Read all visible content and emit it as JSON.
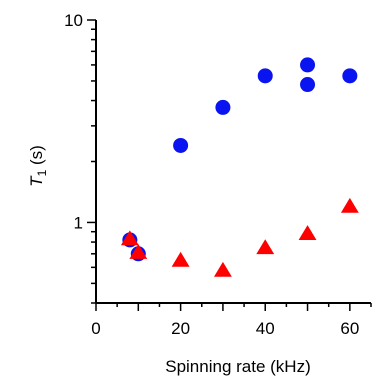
{
  "chart_data": {
    "type": "scatter",
    "xlabel": "Spinning rate (kHz)",
    "ylabel": {
      "main": "T",
      "sub": "1",
      "unit": " (s)"
    },
    "xlim": [
      0,
      65
    ],
    "ylim": [
      0.4,
      10
    ],
    "y_scale": "log",
    "x_ticks": [
      0,
      20,
      40,
      60
    ],
    "y_ticks": [
      1,
      10
    ],
    "grid": false,
    "series": [
      {
        "marker": "circle",
        "color": "#0a14f0",
        "points": [
          {
            "x": 8,
            "y": 0.82
          },
          {
            "x": 10,
            "y": 0.7
          },
          {
            "x": 20,
            "y": 2.4
          },
          {
            "x": 30,
            "y": 3.7
          },
          {
            "x": 40,
            "y": 5.3
          },
          {
            "x": 50,
            "y": 6.0
          },
          {
            "x": 50,
            "y": 4.8
          },
          {
            "x": 60,
            "y": 5.3
          }
        ]
      },
      {
        "marker": "triangle",
        "color": "#ff0000",
        "points": [
          {
            "x": 8,
            "y": 0.83
          },
          {
            "x": 10,
            "y": 0.71
          },
          {
            "x": 20,
            "y": 0.65
          },
          {
            "x": 30,
            "y": 0.58
          },
          {
            "x": 40,
            "y": 0.75
          },
          {
            "x": 50,
            "y": 0.88
          },
          {
            "x": 60,
            "y": 1.2
          }
        ]
      }
    ]
  }
}
